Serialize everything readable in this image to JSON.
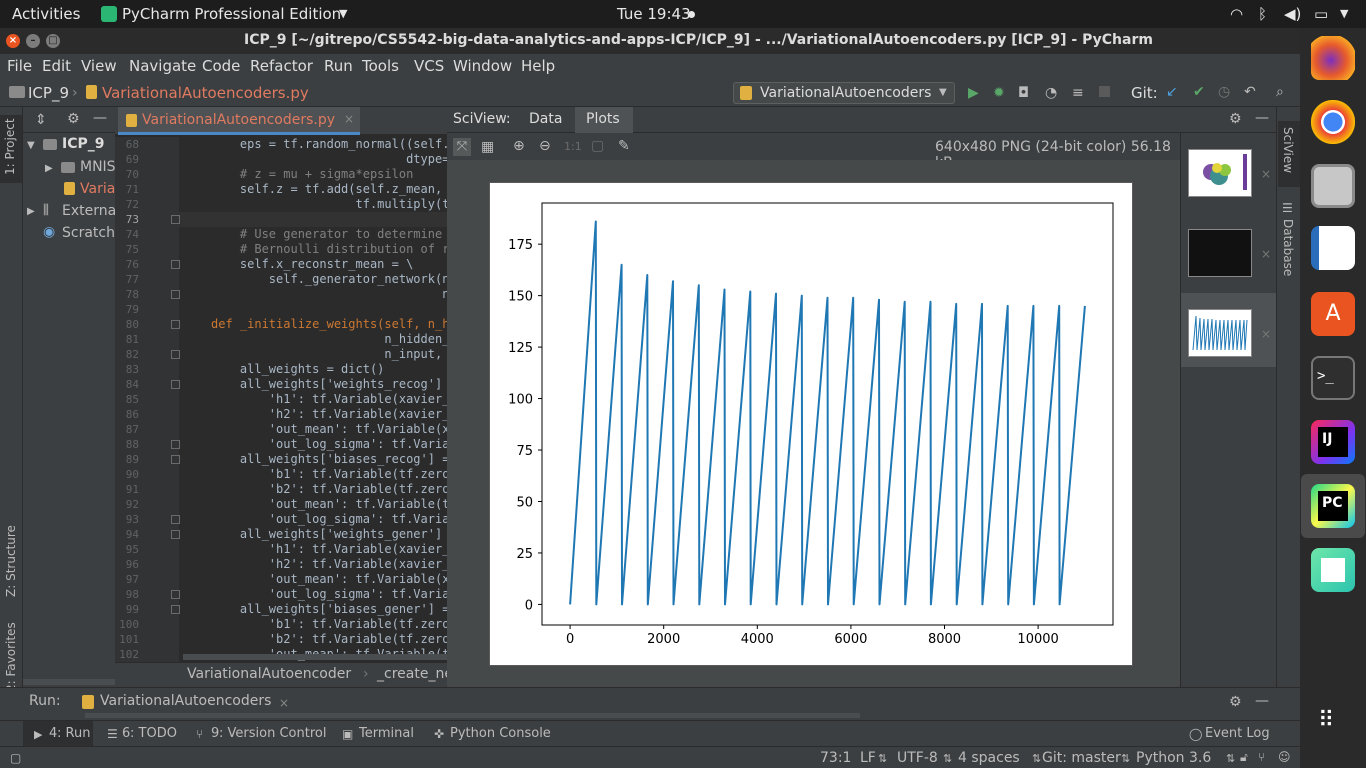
{
  "topbar": {
    "activities": "Activities",
    "app_menu": "PyCharm Professional Edition",
    "clock": "Tue 19:43"
  },
  "window": {
    "title": "ICP_9 [~/gitrepo/CS5542-big-data-analytics-and-apps-ICP/ICP_9] - .../VariationalAutoencoders.py [ICP_9] - PyCharm"
  },
  "menu": [
    "File",
    "Edit",
    "View",
    "Navigate",
    "Code",
    "Refactor",
    "Run",
    "Tools",
    "VCS",
    "Window",
    "Help"
  ],
  "nav": {
    "project": "ICP_9",
    "file": "VariationalAutoencoders.py",
    "run_config": "VariationalAutoencoders",
    "git": "Git:"
  },
  "left_stripe": {
    "project": "1: Project",
    "structure": "Z: Structure",
    "favorites": "2: Favorites"
  },
  "project_tree": [
    "ICP_9",
    "MNIS",
    "Varia",
    "Externa",
    "Scratche"
  ],
  "editor": {
    "tab": "VariationalAutoencoders.py",
    "lines": [
      {
        "n": "68",
        "code": "    eps = tf.random_normal((self."
      },
      {
        "n": "69",
        "code": "                           dtype="
      },
      {
        "n": "70",
        "code": "    # z = mu + sigma*epsilon"
      },
      {
        "n": "71",
        "code": "    self.z = tf.add(self.z_mean,"
      },
      {
        "n": "72",
        "code": "                    tf.multiply(t"
      },
      {
        "n": "73",
        "code": ""
      },
      {
        "n": "74",
        "code": "    # Use generator to determine m"
      },
      {
        "n": "75",
        "code": "    # Bernoulli distribution of re"
      },
      {
        "n": "76",
        "code": "    self.x_reconstr_mean = \\"
      },
      {
        "n": "77",
        "code": "        self._generator_network(ne"
      },
      {
        "n": "78",
        "code": "                                ne"
      },
      {
        "n": "79",
        "code": ""
      },
      {
        "n": "80",
        "code": "def _initialize_weights(self, n_hi"
      },
      {
        "n": "81",
        "code": "                        n_hidden_g"
      },
      {
        "n": "82",
        "code": "                        n_input, n"
      },
      {
        "n": "83",
        "code": "    all_weights = dict()"
      },
      {
        "n": "84",
        "code": "    all_weights['weights_recog'] ="
      },
      {
        "n": "85",
        "code": "        'h1': tf.Variable(xavier_i"
      },
      {
        "n": "86",
        "code": "        'h2': tf.Variable(xavier_i"
      },
      {
        "n": "87",
        "code": "        'out_mean': tf.Variable(xa"
      },
      {
        "n": "88",
        "code": "        'out_log_sigma': tf.Variab"
      },
      {
        "n": "89",
        "code": "    all_weights['biases_recog'] ="
      },
      {
        "n": "90",
        "code": "        'b1': tf.Variable(tf.zeros"
      },
      {
        "n": "91",
        "code": "        'b2': tf.Variable(tf.zeros"
      },
      {
        "n": "92",
        "code": "        'out_mean': tf.Variable(tf"
      },
      {
        "n": "93",
        "code": "        'out_log_sigma': tf.Variab"
      },
      {
        "n": "94",
        "code": "    all_weights['weights_gener'] ="
      },
      {
        "n": "95",
        "code": "        'h1': tf.Variable(xavier_i"
      },
      {
        "n": "96",
        "code": "        'h2': tf.Variable(xavier_i"
      },
      {
        "n": "97",
        "code": "        'out_mean': tf.Variable(xa"
      },
      {
        "n": "98",
        "code": "        'out_log_sigma': tf.Varia"
      },
      {
        "n": "99",
        "code": "    all_weights['biases_gener'] ="
      },
      {
        "n": "100",
        "code": "        'b1': tf.Variable(tf.zeros"
      },
      {
        "n": "101",
        "code": "        'b2': tf.Variable(tf.zeros"
      },
      {
        "n": "102",
        "code": "        'out_mean': tf.Variable(tf"
      }
    ],
    "breadcrumb": [
      "VariationalAutoencoder",
      "_create_ne"
    ]
  },
  "sciview": {
    "label": "SciView:",
    "tabs": [
      "Data",
      "Plots"
    ],
    "image_info": "640x480 PNG (24-bit color) 56.18 kB",
    "zoom_label": "1:1"
  },
  "right_stripe": {
    "sciview": "SciView",
    "database": "Database"
  },
  "run": {
    "label": "Run:",
    "config": "VariationalAutoencoders"
  },
  "tool_windows": [
    {
      "num": "4",
      "label": "Run"
    },
    {
      "num": "6",
      "label": "TODO"
    },
    {
      "num": "9",
      "label": "Version Control"
    },
    {
      "num": "",
      "label": "Terminal"
    },
    {
      "num": "",
      "label": "Python Console"
    }
  ],
  "event_log": "Event Log",
  "status": {
    "position": "73:1",
    "line_sep": "LF",
    "encoding": "UTF-8",
    "indent": "4 spaces",
    "git": "Git: master",
    "interpreter": "Python 3.6"
  },
  "chart_data": {
    "type": "line",
    "x": [
      0,
      550,
      560,
      1100,
      1110,
      1650,
      1660,
      2200,
      2210,
      2750,
      2760,
      3300,
      3310,
      3850,
      3860,
      4400,
      4410,
      4950,
      4960,
      5500,
      5510,
      6050,
      6060,
      6600,
      6610,
      7150,
      7160,
      7700,
      7710,
      8250,
      8260,
      8800,
      8810,
      9350,
      9360,
      9900,
      9910,
      10450,
      10460,
      11000
    ],
    "y": [
      0,
      186,
      0,
      165,
      0,
      160,
      0,
      157,
      0,
      155,
      0,
      153,
      0,
      152,
      0,
      151,
      0,
      150,
      0,
      149,
      0,
      149,
      0,
      148,
      0,
      147,
      0,
      147,
      0,
      146,
      0,
      146,
      0,
      145,
      0,
      145,
      0,
      145,
      0,
      145
    ],
    "xlim": [
      -600,
      11600
    ],
    "ylim": [
      -10,
      195
    ],
    "xticks": [
      0,
      2000,
      4000,
      6000,
      8000,
      10000
    ],
    "yticks": [
      0,
      25,
      50,
      75,
      100,
      125,
      150,
      175
    ],
    "color": "#1f77b4",
    "grid": false
  }
}
